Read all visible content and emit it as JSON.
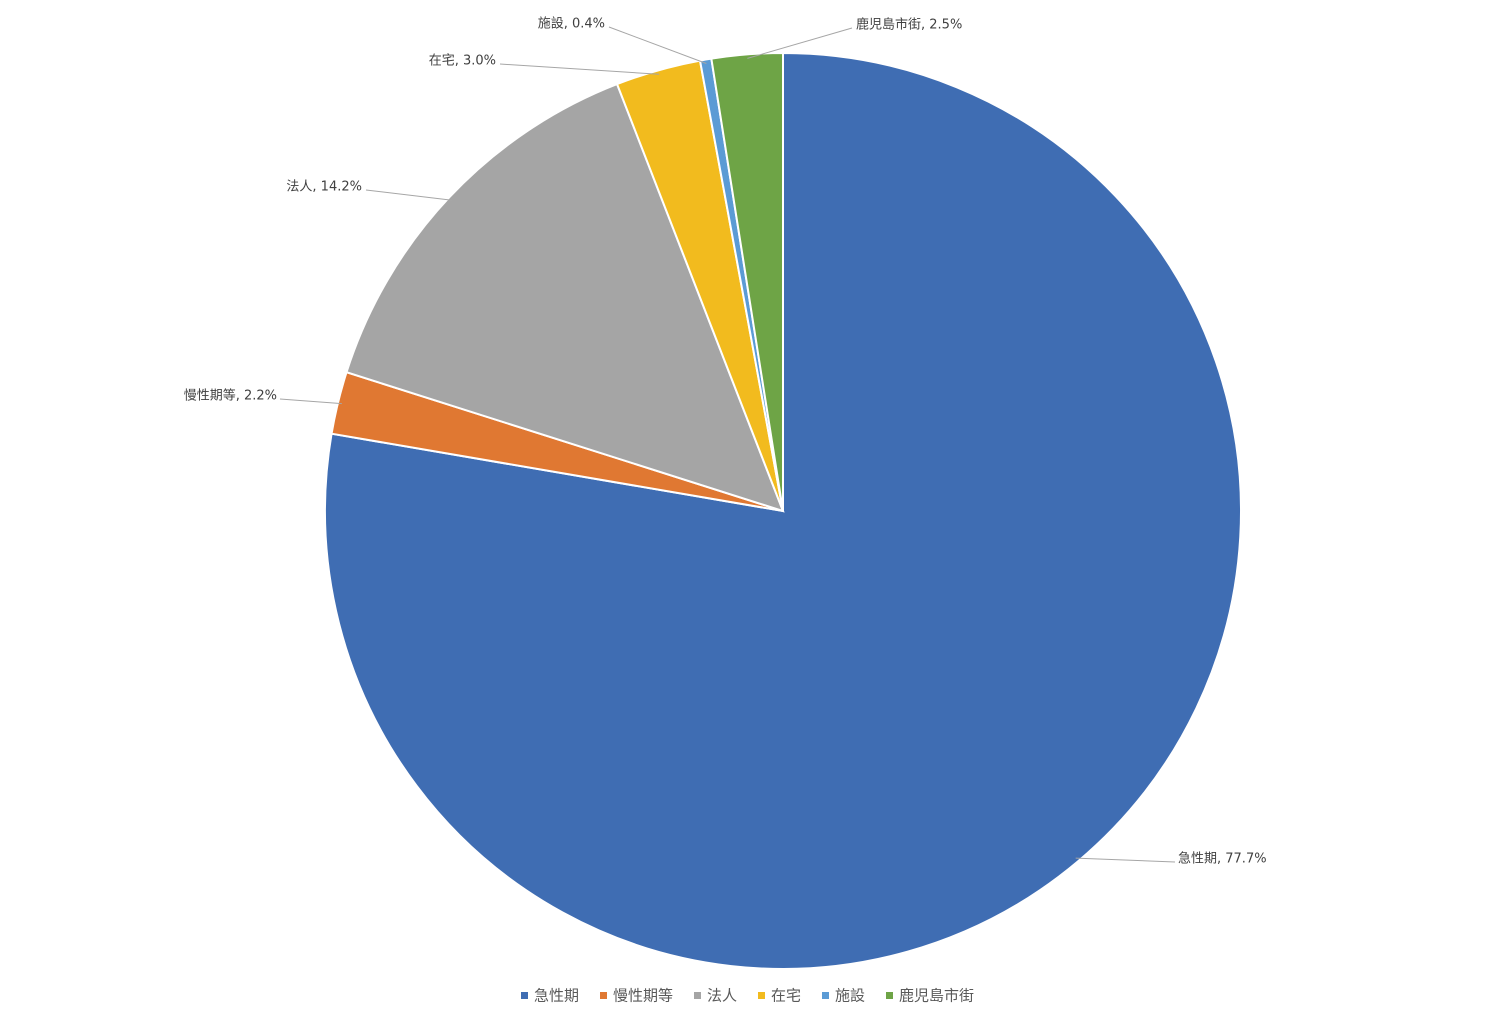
{
  "chart_data": {
    "type": "pie",
    "categories": [
      "急性期",
      "慢性期等",
      "法人",
      "在宅",
      "施設",
      "鹿児島市街"
    ],
    "values": [
      77.7,
      2.2,
      14.2,
      3.0,
      0.4,
      2.5
    ],
    "value_labels": [
      "急性期, 77.7%",
      "慢性期等, 2.2%",
      "法人, 14.2%",
      "在宅, 3.0%",
      "施設, 0.4%",
      "鹿児島市街, 2.5%"
    ],
    "colors": [
      "#3f6db3",
      "#e07832",
      "#a5a5a5",
      "#f2bb1e",
      "#5b9bd5",
      "#6ea446"
    ],
    "legend": "bottom"
  }
}
